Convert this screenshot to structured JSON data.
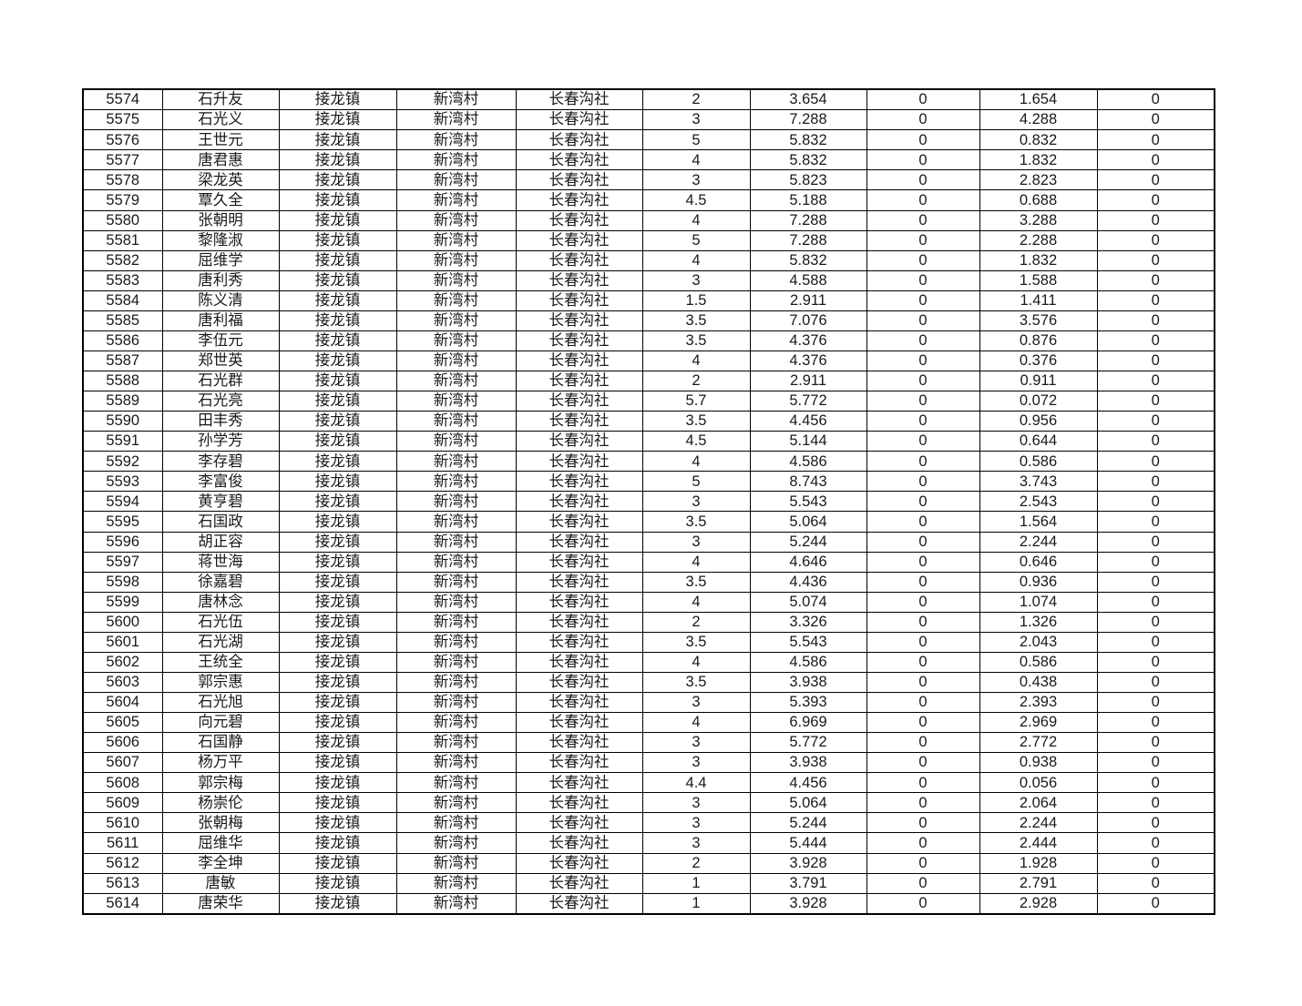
{
  "colors": {
    "background": "#ffffff",
    "border": "#000000",
    "text": "#1a1a1a"
  },
  "table": {
    "rows": [
      [
        "5574",
        "石升友",
        "接龙镇",
        "新湾村",
        "长春沟社",
        "2",
        "3.654",
        "0",
        "1.654",
        "0"
      ],
      [
        "5575",
        "石光义",
        "接龙镇",
        "新湾村",
        "长春沟社",
        "3",
        "7.288",
        "0",
        "4.288",
        "0"
      ],
      [
        "5576",
        "王世元",
        "接龙镇",
        "新湾村",
        "长春沟社",
        "5",
        "5.832",
        "0",
        "0.832",
        "0"
      ],
      [
        "5577",
        "唐君惠",
        "接龙镇",
        "新湾村",
        "长春沟社",
        "4",
        "5.832",
        "0",
        "1.832",
        "0"
      ],
      [
        "5578",
        "梁龙英",
        "接龙镇",
        "新湾村",
        "长春沟社",
        "3",
        "5.823",
        "0",
        "2.823",
        "0"
      ],
      [
        "5579",
        "覃久全",
        "接龙镇",
        "新湾村",
        "长春沟社",
        "4.5",
        "5.188",
        "0",
        "0.688",
        "0"
      ],
      [
        "5580",
        "张朝明",
        "接龙镇",
        "新湾村",
        "长春沟社",
        "4",
        "7.288",
        "0",
        "3.288",
        "0"
      ],
      [
        "5581",
        "黎隆淑",
        "接龙镇",
        "新湾村",
        "长春沟社",
        "5",
        "7.288",
        "0",
        "2.288",
        "0"
      ],
      [
        "5582",
        "屈维学",
        "接龙镇",
        "新湾村",
        "长春沟社",
        "4",
        "5.832",
        "0",
        "1.832",
        "0"
      ],
      [
        "5583",
        "唐利秀",
        "接龙镇",
        "新湾村",
        "长春沟社",
        "3",
        "4.588",
        "0",
        "1.588",
        "0"
      ],
      [
        "5584",
        "陈义清",
        "接龙镇",
        "新湾村",
        "长春沟社",
        "1.5",
        "2.911",
        "0",
        "1.411",
        "0"
      ],
      [
        "5585",
        "唐利福",
        "接龙镇",
        "新湾村",
        "长春沟社",
        "3.5",
        "7.076",
        "0",
        "3.576",
        "0"
      ],
      [
        "5586",
        "李伍元",
        "接龙镇",
        "新湾村",
        "长春沟社",
        "3.5",
        "4.376",
        "0",
        "0.876",
        "0"
      ],
      [
        "5587",
        "郑世英",
        "接龙镇",
        "新湾村",
        "长春沟社",
        "4",
        "4.376",
        "0",
        "0.376",
        "0"
      ],
      [
        "5588",
        "石光群",
        "接龙镇",
        "新湾村",
        "长春沟社",
        "2",
        "2.911",
        "0",
        "0.911",
        "0"
      ],
      [
        "5589",
        "石光亮",
        "接龙镇",
        "新湾村",
        "长春沟社",
        "5.7",
        "5.772",
        "0",
        "0.072",
        "0"
      ],
      [
        "5590",
        "田丰秀",
        "接龙镇",
        "新湾村",
        "长春沟社",
        "3.5",
        "4.456",
        "0",
        "0.956",
        "0"
      ],
      [
        "5591",
        "孙学芳",
        "接龙镇",
        "新湾村",
        "长春沟社",
        "4.5",
        "5.144",
        "0",
        "0.644",
        "0"
      ],
      [
        "5592",
        "李存碧",
        "接龙镇",
        "新湾村",
        "长春沟社",
        "4",
        "4.586",
        "0",
        "0.586",
        "0"
      ],
      [
        "5593",
        "李富俊",
        "接龙镇",
        "新湾村",
        "长春沟社",
        "5",
        "8.743",
        "0",
        "3.743",
        "0"
      ],
      [
        "5594",
        "黄亨碧",
        "接龙镇",
        "新湾村",
        "长春沟社",
        "3",
        "5.543",
        "0",
        "2.543",
        "0"
      ],
      [
        "5595",
        "石国政",
        "接龙镇",
        "新湾村",
        "长春沟社",
        "3.5",
        "5.064",
        "0",
        "1.564",
        "0"
      ],
      [
        "5596",
        "胡正容",
        "接龙镇",
        "新湾村",
        "长春沟社",
        "3",
        "5.244",
        "0",
        "2.244",
        "0"
      ],
      [
        "5597",
        "蒋世海",
        "接龙镇",
        "新湾村",
        "长春沟社",
        "4",
        "4.646",
        "0",
        "0.646",
        "0"
      ],
      [
        "5598",
        "徐嘉碧",
        "接龙镇",
        "新湾村",
        "长春沟社",
        "3.5",
        "4.436",
        "0",
        "0.936",
        "0"
      ],
      [
        "5599",
        "唐林念",
        "接龙镇",
        "新湾村",
        "长春沟社",
        "4",
        "5.074",
        "0",
        "1.074",
        "0"
      ],
      [
        "5600",
        "石光伍",
        "接龙镇",
        "新湾村",
        "长春沟社",
        "2",
        "3.326",
        "0",
        "1.326",
        "0"
      ],
      [
        "5601",
        "石光湖",
        "接龙镇",
        "新湾村",
        "长春沟社",
        "3.5",
        "5.543",
        "0",
        "2.043",
        "0"
      ],
      [
        "5602",
        "王统全",
        "接龙镇",
        "新湾村",
        "长春沟社",
        "4",
        "4.586",
        "0",
        "0.586",
        "0"
      ],
      [
        "5603",
        "郭宗惠",
        "接龙镇",
        "新湾村",
        "长春沟社",
        "3.5",
        "3.938",
        "0",
        "0.438",
        "0"
      ],
      [
        "5604",
        "石光旭",
        "接龙镇",
        "新湾村",
        "长春沟社",
        "3",
        "5.393",
        "0",
        "2.393",
        "0"
      ],
      [
        "5605",
        "向元碧",
        "接龙镇",
        "新湾村",
        "长春沟社",
        "4",
        "6.969",
        "0",
        "2.969",
        "0"
      ],
      [
        "5606",
        "石国静",
        "接龙镇",
        "新湾村",
        "长春沟社",
        "3",
        "5.772",
        "0",
        "2.772",
        "0"
      ],
      [
        "5607",
        "杨万平",
        "接龙镇",
        "新湾村",
        "长春沟社",
        "3",
        "3.938",
        "0",
        "0.938",
        "0"
      ],
      [
        "5608",
        "郭宗梅",
        "接龙镇",
        "新湾村",
        "长春沟社",
        "4.4",
        "4.456",
        "0",
        "0.056",
        "0"
      ],
      [
        "5609",
        "杨崇伦",
        "接龙镇",
        "新湾村",
        "长春沟社",
        "3",
        "5.064",
        "0",
        "2.064",
        "0"
      ],
      [
        "5610",
        "张朝梅",
        "接龙镇",
        "新湾村",
        "长春沟社",
        "3",
        "5.244",
        "0",
        "2.244",
        "0"
      ],
      [
        "5611",
        "屈维华",
        "接龙镇",
        "新湾村",
        "长春沟社",
        "3",
        "5.444",
        "0",
        "2.444",
        "0"
      ],
      [
        "5612",
        "李全坤",
        "接龙镇",
        "新湾村",
        "长春沟社",
        "2",
        "3.928",
        "0",
        "1.928",
        "0"
      ],
      [
        "5613",
        "唐敏",
        "接龙镇",
        "新湾村",
        "长春沟社",
        "1",
        "3.791",
        "0",
        "2.791",
        "0"
      ],
      [
        "5614",
        "唐荣华",
        "接龙镇",
        "新湾村",
        "长春沟社",
        "1",
        "3.928",
        "0",
        "2.928",
        "0"
      ]
    ]
  }
}
